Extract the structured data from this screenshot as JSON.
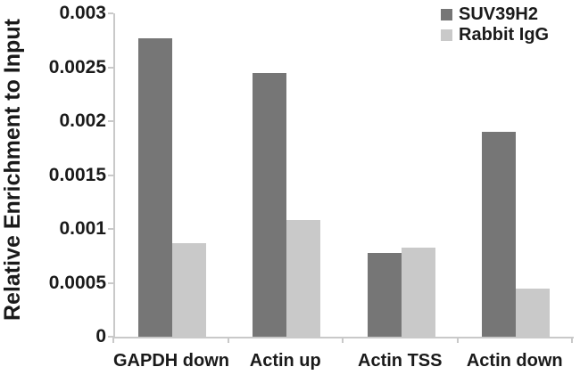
{
  "figure": {
    "background": "#ffffff",
    "text_color": "#1a1a1a",
    "axis_color": "#c9c9c9"
  },
  "chart_data": {
    "type": "bar",
    "title": "",
    "xlabel": "",
    "ylabel": "Relative Enrichment to Input",
    "categories": [
      "GAPDH down",
      "Actin up",
      "Actin TSS",
      "Actin down"
    ],
    "series": [
      {
        "name": "SUV39H2",
        "color": "#767676",
        "values": [
          0.00277,
          0.00245,
          0.00078,
          0.0019
        ]
      },
      {
        "name": "Rabbit IgG",
        "color": "#c9c9c9",
        "values": [
          0.00087,
          0.00108,
          0.00083,
          0.00045
        ]
      }
    ],
    "ylim": [
      0,
      0.003
    ],
    "y_ticks": [
      {
        "label": "0",
        "value": 0
      },
      {
        "label": "0.0005",
        "value": 0.0005
      },
      {
        "label": "0.001",
        "value": 0.001
      },
      {
        "label": "0.0015",
        "value": 0.0015
      },
      {
        "label": "0.002",
        "value": 0.002
      },
      {
        "label": "0.0025",
        "value": 0.0025
      },
      {
        "label": "0.003",
        "value": 0.003
      }
    ],
    "grid": false,
    "legend_position": "top-right"
  }
}
